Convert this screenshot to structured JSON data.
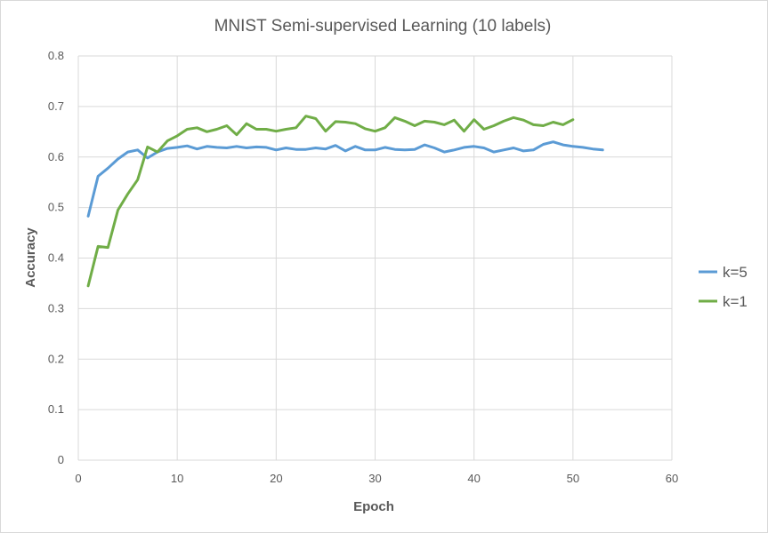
{
  "chart_data": {
    "type": "line",
    "title": "MNIST Semi-supervised Learning (10 labels)",
    "xlabel": "Epoch",
    "ylabel": "Accuracy",
    "xlim": [
      0,
      60
    ],
    "ylim": [
      0,
      0.8
    ],
    "x_ticks": [
      "0",
      "10",
      "20",
      "30",
      "40",
      "50",
      "60"
    ],
    "y_ticks": [
      "0",
      "0.1",
      "0.2",
      "0.3",
      "0.4",
      "0.5",
      "0.6",
      "0.7",
      "0.8"
    ],
    "grid": true,
    "legend_position": "right",
    "series": [
      {
        "name": "k=5",
        "color": "#5b9bd5",
        "x": [
          1,
          2,
          3,
          4,
          5,
          6,
          7,
          8,
          9,
          10,
          11,
          12,
          13,
          14,
          15,
          16,
          17,
          18,
          19,
          20,
          21,
          22,
          23,
          24,
          25,
          26,
          27,
          28,
          29,
          30,
          31,
          32,
          33,
          34,
          35,
          36,
          37,
          38,
          39,
          40,
          41,
          42,
          43,
          44,
          45,
          46,
          47,
          48,
          49,
          50,
          51,
          52,
          53
        ],
        "values": [
          0.483,
          0.562,
          0.578,
          0.596,
          0.61,
          0.614,
          0.598,
          0.61,
          0.617,
          0.619,
          0.622,
          0.616,
          0.621,
          0.619,
          0.618,
          0.621,
          0.618,
          0.62,
          0.619,
          0.614,
          0.618,
          0.615,
          0.615,
          0.618,
          0.616,
          0.623,
          0.612,
          0.621,
          0.614,
          0.614,
          0.619,
          0.615,
          0.614,
          0.615,
          0.624,
          0.618,
          0.61,
          0.614,
          0.619,
          0.621,
          0.618,
          0.61,
          0.614,
          0.618,
          0.612,
          0.614,
          0.625,
          0.63,
          0.624,
          0.621,
          0.619,
          0.616,
          0.614
        ]
      },
      {
        "name": "k=1",
        "color": "#70ad47",
        "x": [
          1,
          2,
          3,
          4,
          5,
          6,
          7,
          8,
          9,
          10,
          11,
          12,
          13,
          14,
          15,
          16,
          17,
          18,
          19,
          20,
          21,
          22,
          23,
          24,
          25,
          26,
          27,
          28,
          29,
          30,
          31,
          32,
          33,
          34,
          35,
          36,
          37,
          38,
          39,
          40,
          41,
          42,
          43,
          44,
          45,
          46,
          47,
          48,
          49,
          50
        ],
        "values": [
          0.345,
          0.423,
          0.421,
          0.495,
          0.527,
          0.555,
          0.62,
          0.61,
          0.632,
          0.642,
          0.655,
          0.658,
          0.65,
          0.655,
          0.662,
          0.644,
          0.666,
          0.655,
          0.655,
          0.651,
          0.655,
          0.658,
          0.681,
          0.676,
          0.651,
          0.67,
          0.669,
          0.666,
          0.656,
          0.651,
          0.658,
          0.678,
          0.671,
          0.662,
          0.671,
          0.669,
          0.664,
          0.673,
          0.651,
          0.674,
          0.655,
          0.662,
          0.671,
          0.678,
          0.673,
          0.664,
          0.662,
          0.669,
          0.664,
          0.674
        ]
      }
    ]
  }
}
